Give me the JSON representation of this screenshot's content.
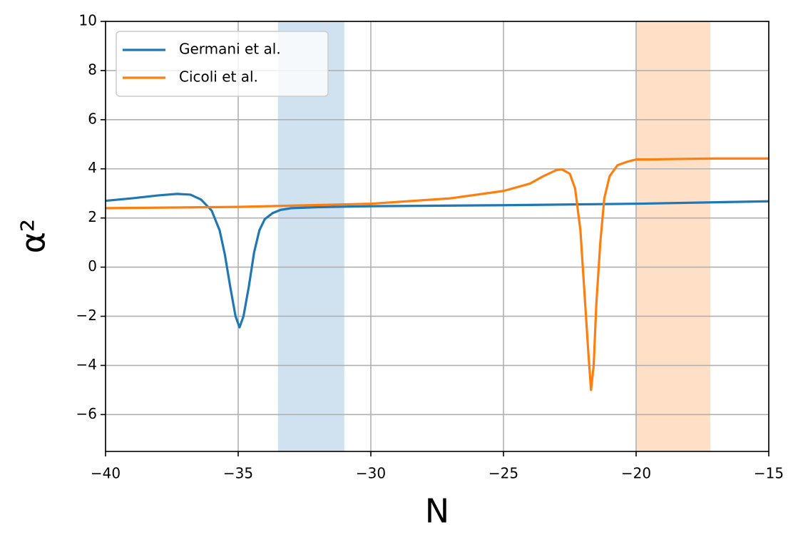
{
  "chart_data": {
    "type": "line",
    "xlabel": "N",
    "ylabel": "α²",
    "xlim": [
      -40,
      -15
    ],
    "xticks": [
      {
        "value": -40,
        "label": "−40"
      },
      {
        "value": -35,
        "label": "−35"
      },
      {
        "value": -30,
        "label": "−30"
      },
      {
        "value": -25,
        "label": "−25"
      },
      {
        "value": -20,
        "label": "−20"
      },
      {
        "value": -15,
        "label": "−15"
      }
    ],
    "ylim": [
      -7.5,
      10
    ],
    "yticks": [
      {
        "value": -6,
        "label": "−6"
      },
      {
        "value": -4,
        "label": "−4"
      },
      {
        "value": -2,
        "label": "−2"
      },
      0,
      2,
      4,
      6,
      8,
      10
    ],
    "grid": true,
    "legend": "upper left",
    "shaded_regions": [
      {
        "xmin": -33.5,
        "xmax": -31,
        "color": "#d0e2f0"
      },
      {
        "xmin": -20,
        "xmax": -17.2,
        "color": "#ffe0c7"
      }
    ],
    "series": [
      {
        "name": "Germani et al.",
        "color": "#1f77b4",
        "x": [
          -40,
          -39,
          -38,
          -37.3,
          -36.8,
          -36.4,
          -36,
          -35.7,
          -35.5,
          -35.3,
          -35.1,
          -34.95,
          -34.8,
          -34.6,
          -34.4,
          -34.2,
          -34,
          -33.7,
          -33.4,
          -33,
          -32,
          -30,
          -25,
          -20,
          -15
        ],
        "values": [
          2.7,
          2.8,
          2.92,
          2.98,
          2.95,
          2.75,
          2.3,
          1.5,
          0.5,
          -0.8,
          -2.0,
          -2.45,
          -2.0,
          -0.8,
          0.6,
          1.5,
          1.95,
          2.2,
          2.33,
          2.4,
          2.44,
          2.48,
          2.52,
          2.58,
          2.68
        ]
      },
      {
        "name": "Cicoli et al.",
        "color": "#ff7f0e",
        "x": [
          -40,
          -35,
          -30,
          -27,
          -25,
          -24,
          -23.5,
          -23,
          -22.8,
          -22.5,
          -22.3,
          -22.1,
          -21.95,
          -21.8,
          -21.7,
          -21.6,
          -21.5,
          -21.35,
          -21.2,
          -21,
          -20.7,
          -20.3,
          -20,
          -19.5,
          -18.5,
          -17,
          -15
        ],
        "values": [
          2.4,
          2.45,
          2.58,
          2.8,
          3.1,
          3.4,
          3.7,
          3.95,
          3.98,
          3.8,
          3.2,
          1.5,
          -1.0,
          -3.5,
          -5.0,
          -4.0,
          -1.5,
          1.0,
          2.8,
          3.7,
          4.15,
          4.3,
          4.38,
          4.38,
          4.4,
          4.42,
          4.42
        ]
      }
    ]
  }
}
